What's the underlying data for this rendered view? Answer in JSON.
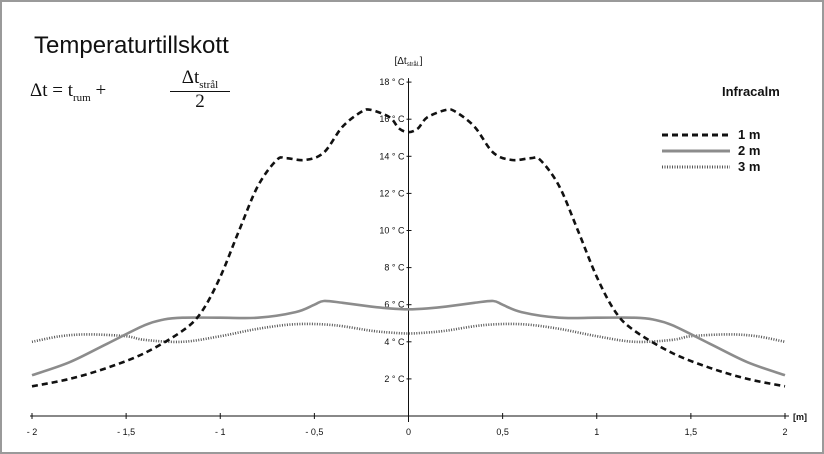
{
  "chart_data": {
    "type": "line",
    "title": "Temperaturtillskott",
    "formula": {
      "lhs": "Δt = t",
      "lhs_sub": "rum",
      "plus": "+",
      "num": "Δt",
      "num_sub": "strål",
      "den": "2"
    },
    "ylabel_main": "[Δt",
    "ylabel_sub": "strål.",
    "ylabel_end": "]",
    "xlabel": "[m]",
    "legend_title": "Infracalm",
    "legend_placement": "top-right",
    "xlim": [
      -2,
      2
    ],
    "ylim": [
      0,
      18
    ],
    "x_ticks": [
      -2,
      -1.5,
      -1,
      -0.5,
      0,
      0.5,
      1,
      1.5,
      2
    ],
    "x_tick_labels": [
      "- 2",
      "- 1,5",
      "- 1",
      "- 0,5",
      "0",
      "0,5",
      "1",
      "1,5",
      "2"
    ],
    "y_ticks": [
      2,
      4,
      6,
      8,
      10,
      12,
      14,
      16,
      18
    ],
    "y_tick_labels": [
      "2 ° C",
      "4 ° C",
      "6 ° C",
      "8 ° C",
      "10 ° C",
      "12 ° C",
      "14 ° C",
      "16 ° C",
      "18 ° C"
    ],
    "grid": false,
    "series": [
      {
        "name": "1 m",
        "style": "dashed",
        "color": "#111111",
        "x": [
          -2,
          -1.8,
          -1.6,
          -1.4,
          -1.2,
          -1.1,
          -1.0,
          -0.9,
          -0.8,
          -0.7,
          -0.65,
          -0.55,
          -0.45,
          -0.35,
          -0.25,
          -0.2,
          -0.1,
          -0.05,
          0,
          0.05,
          0.1,
          0.2,
          0.25,
          0.35,
          0.45,
          0.55,
          0.65,
          0.7,
          0.8,
          0.9,
          1.0,
          1.1,
          1.2,
          1.4,
          1.6,
          1.8,
          2
        ],
        "y": [
          1.6,
          2.0,
          2.6,
          3.4,
          4.6,
          5.6,
          7.5,
          10.0,
          12.4,
          13.8,
          13.9,
          13.8,
          14.2,
          15.6,
          16.4,
          16.5,
          16.1,
          15.5,
          15.3,
          15.5,
          16.1,
          16.5,
          16.4,
          15.6,
          14.2,
          13.8,
          13.9,
          13.8,
          12.4,
          10.0,
          7.5,
          5.6,
          4.6,
          3.4,
          2.6,
          2.0,
          1.6
        ]
      },
      {
        "name": "2 m",
        "style": "solid",
        "color": "#8c8c8c",
        "x": [
          -2,
          -1.8,
          -1.6,
          -1.4,
          -1.3,
          -1.2,
          -1.0,
          -0.8,
          -0.6,
          -0.5,
          -0.45,
          -0.35,
          -0.2,
          -0.1,
          0,
          0.1,
          0.2,
          0.35,
          0.45,
          0.5,
          0.6,
          0.8,
          1.0,
          1.2,
          1.3,
          1.4,
          1.6,
          1.8,
          2
        ],
        "y": [
          2.2,
          2.9,
          3.9,
          4.9,
          5.2,
          5.3,
          5.3,
          5.3,
          5.6,
          6.0,
          6.2,
          6.1,
          5.9,
          5.8,
          5.75,
          5.8,
          5.9,
          6.1,
          6.2,
          6.0,
          5.6,
          5.3,
          5.3,
          5.3,
          5.2,
          4.9,
          3.9,
          2.9,
          2.2
        ]
      },
      {
        "name": "3 m",
        "style": "dotted",
        "color": "#555555",
        "x": [
          -2,
          -1.85,
          -1.7,
          -1.5,
          -1.4,
          -1.2,
          -1.0,
          -0.8,
          -0.6,
          -0.4,
          -0.2,
          -0.1,
          0,
          0.1,
          0.2,
          0.4,
          0.6,
          0.8,
          1.0,
          1.2,
          1.4,
          1.5,
          1.7,
          1.85,
          2
        ],
        "y": [
          4.0,
          4.3,
          4.4,
          4.3,
          4.1,
          4.0,
          4.3,
          4.7,
          4.95,
          4.9,
          4.6,
          4.5,
          4.45,
          4.5,
          4.6,
          4.9,
          4.95,
          4.7,
          4.3,
          4.0,
          4.1,
          4.3,
          4.4,
          4.3,
          4.0
        ]
      }
    ]
  }
}
